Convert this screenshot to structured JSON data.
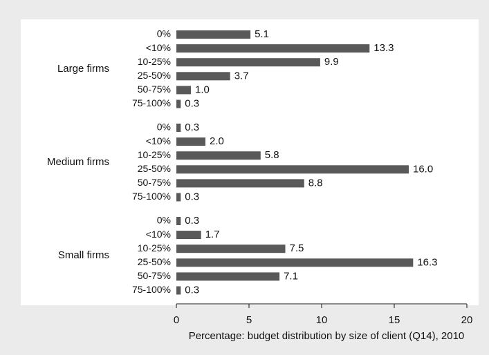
{
  "chart_data": {
    "type": "bar",
    "orientation": "horizontal",
    "xlabel": "Percentage: budget distribution by size of client (Q14), 2010",
    "categories": [
      "0%",
      "<10%",
      "10-25%",
      "25-50%",
      "50-75%",
      "75-100%"
    ],
    "groups": [
      {
        "name": "Large firms",
        "values": [
          5.1,
          13.3,
          9.9,
          3.7,
          1.0,
          0.3
        ],
        "value_labels": [
          "5.1",
          "13.3",
          "9.9",
          "3.7",
          "1.0",
          "0.3"
        ]
      },
      {
        "name": "Medium firms",
        "values": [
          0.3,
          2.0,
          5.8,
          16.0,
          8.8,
          0.3
        ],
        "value_labels": [
          "0.3",
          "2.0",
          "5.8",
          "16.0",
          "8.8",
          "0.3"
        ]
      },
      {
        "name": "Small firms",
        "values": [
          0.3,
          1.7,
          7.5,
          16.3,
          7.1,
          0.3
        ],
        "value_labels": [
          "0.3",
          "1.7",
          "7.5",
          "16.3",
          "7.1",
          "0.3"
        ]
      }
    ],
    "color": "#595959",
    "xlim": [
      0,
      20
    ],
    "xticks": [
      0,
      5,
      10,
      15,
      20
    ],
    "grid": false
  }
}
